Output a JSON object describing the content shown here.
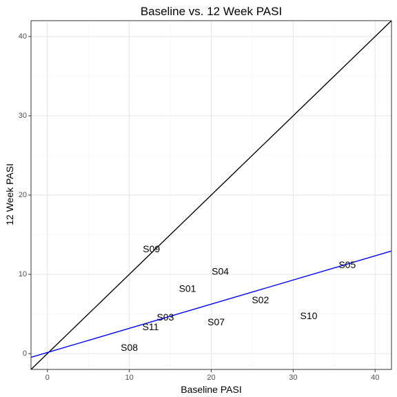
{
  "chart_data": {
    "type": "scatter",
    "title": "Baseline vs. 12 Week PASI",
    "xlabel": "Baseline PASI",
    "ylabel": "12 Week PASI",
    "xlim": [
      -2,
      42
    ],
    "ylim": [
      -2,
      42
    ],
    "x_ticks": [
      0,
      10,
      20,
      30,
      40
    ],
    "y_ticks": [
      0,
      10,
      20,
      30,
      40
    ],
    "grid": true,
    "points": [
      {
        "label": "S09",
        "x": 12.7,
        "y": 13.2
      },
      {
        "label": "S04",
        "x": 21.1,
        "y": 10.4
      },
      {
        "label": "S05",
        "x": 36.6,
        "y": 11.2
      },
      {
        "label": "S01",
        "x": 17.1,
        "y": 8.2
      },
      {
        "label": "S02",
        "x": 26.0,
        "y": 6.8
      },
      {
        "label": "S10",
        "x": 31.9,
        "y": 4.8
      },
      {
        "label": "S03",
        "x": 14.4,
        "y": 4.6
      },
      {
        "label": "S07",
        "x": 20.6,
        "y": 4.0
      },
      {
        "label": "S11",
        "x": 12.6,
        "y": 3.4
      },
      {
        "label": "S08",
        "x": 10.0,
        "y": 0.8
      }
    ],
    "reference_lines": [
      {
        "name": "identity",
        "color": "#000000",
        "x": [
          -2,
          42
        ],
        "y": [
          -2,
          42
        ]
      },
      {
        "name": "fit",
        "color": "#0000ff",
        "x": [
          -2,
          42
        ],
        "y": [
          -0.47,
          12.94
        ]
      }
    ]
  }
}
